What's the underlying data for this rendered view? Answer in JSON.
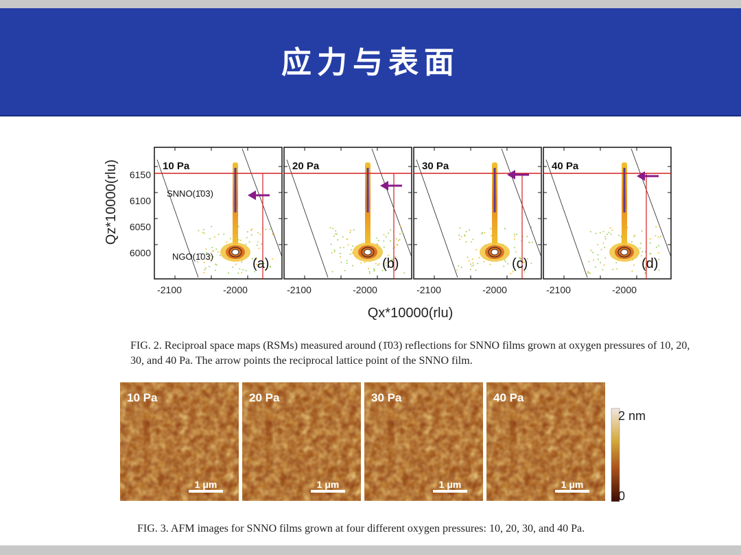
{
  "slide": {
    "title": "应力与表面"
  },
  "fig2": {
    "ylabel": "Qz*10000(rlu)",
    "xlabel": "Qx*10000(rlu)",
    "yticks": [
      "6150",
      "6100",
      "6050",
      "6000"
    ],
    "xticks": [
      "-2100",
      "-2000"
    ],
    "panels": [
      {
        "pressure": "10 Pa",
        "letter": "(a)"
      },
      {
        "pressure": "20 Pa",
        "letter": "(b)"
      },
      {
        "pressure": "30 Pa",
        "letter": "(c)"
      },
      {
        "pressure": "40 Pa",
        "letter": "(d)"
      }
    ],
    "film_label": "SNNO(1̄03)",
    "substrate_label": "NGO(1̄03)",
    "caption": "FIG. 2.  Reciproal space maps (RSMs) measured around (1̄03) reflections for SNNO films grown at oxygen pressures of 10, 20, 30, and 40 Pa. The arrow points the reciprocal lattice point of the SNNO film."
  },
  "fig3": {
    "panels": [
      {
        "pressure": "10 Pa",
        "scalebar": "1 μm"
      },
      {
        "pressure": "20 Pa",
        "scalebar": "1 μm"
      },
      {
        "pressure": "30 Pa",
        "scalebar": "1 μm"
      },
      {
        "pressure": "40 Pa",
        "scalebar": "1 μm"
      }
    ],
    "colorbar_max": "2 nm",
    "colorbar_min": "0",
    "caption": "FIG. 3.  AFM images for SNNO films grown at four different oxygen pressures: 10, 20, 30, and 40 Pa."
  },
  "colors": {
    "banner": "#253ea6",
    "arrow": "#8a1a8a",
    "refline": "#d42020",
    "afm_dark": "#5a1a08",
    "afm_light": "#f0e0d8"
  }
}
